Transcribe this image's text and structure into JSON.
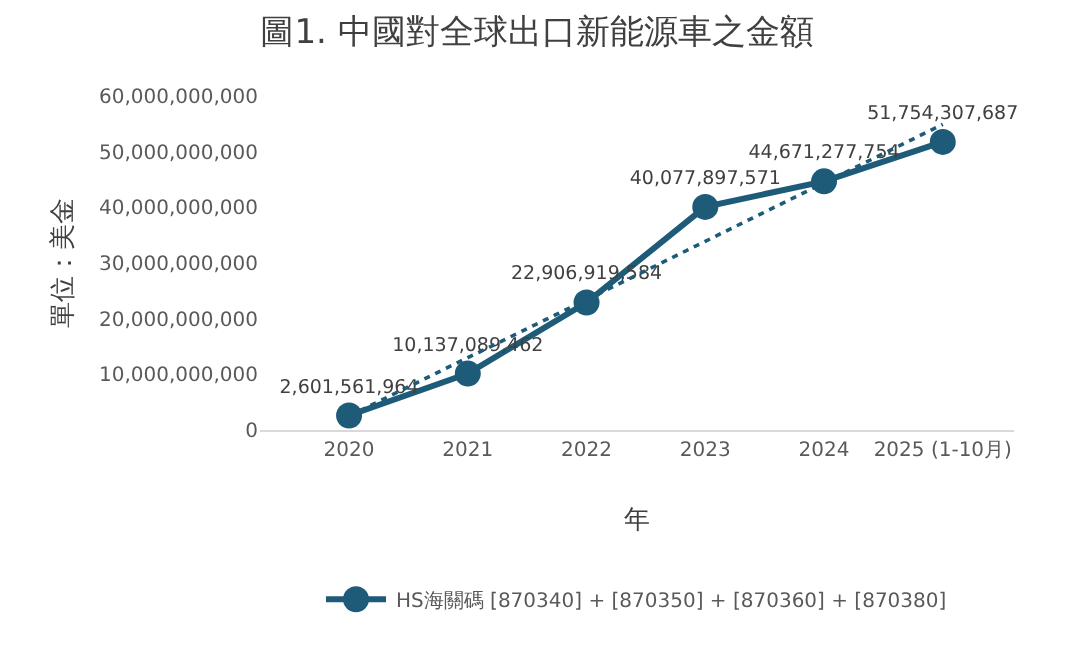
{
  "chart_data": {
    "type": "line",
    "title": "圖1. 中國對全球出口新能源車之金額",
    "xlabel": "年",
    "ylabel": "單位：美金",
    "categories": [
      "2020",
      "2021",
      "2022",
      "2023",
      "2024",
      "2025 (1-10月)"
    ],
    "series": [
      {
        "name": "HS海關碼 [870340] + [870350] + [870360] + [870380]",
        "color": "#1d5b79",
        "values": [
          2601561964,
          10137089462,
          22906919584,
          40077897571,
          44671277754,
          51754307687
        ],
        "value_labels": [
          "2,601,561,964",
          "10,137,089,462",
          "22,906,919,584",
          "40,077,897,571",
          "44,671,277,754",
          "51,754,307,687"
        ],
        "marker": "circle",
        "line_style": "solid"
      },
      {
        "type": "line",
        "color": "#1d5b79",
        "values": [
          2500000000,
          13000000000,
          23400000000,
          33900000000,
          44400000000,
          54900000000
        ],
        "marker": "none",
        "line_style": "dotted"
      }
    ],
    "ylim": [
      0,
      60000000000
    ],
    "yticks": [
      0,
      {
        "value": 10000000000,
        "label": "10,000,000,000"
      },
      {
        "value": 20000000000,
        "label": "20,000,000,000"
      },
      {
        "value": 30000000000,
        "label": "30,000,000,000"
      },
      {
        "value": 40000000000,
        "label": "40,000,000,000"
      },
      {
        "value": 50000000000,
        "label": "50,000,000,000"
      },
      {
        "value": 60000000000,
        "label": "60,000,000,000"
      }
    ],
    "grid": false,
    "legend": "bottom"
  }
}
